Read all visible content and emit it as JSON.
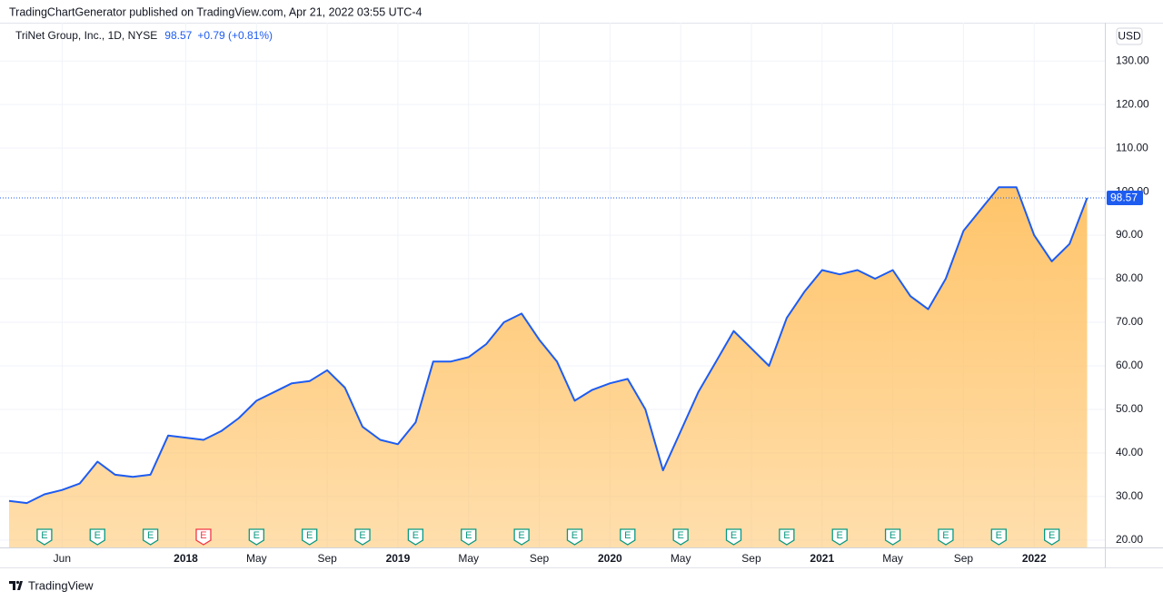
{
  "header": "TradingChartGenerator published on TradingView.com, Apr 21, 2022 03:55 UTC-4",
  "footer": "TradingView",
  "chart_data": {
    "type": "area",
    "title": "TriNet Group, Inc., 1D, NYSE",
    "last_price": 98.57,
    "last_price_label": "98.57",
    "change": "+0.79 (+0.81%)",
    "currency": "USD",
    "grid": true,
    "series": [
      {
        "name": "TriNet Group, Inc.",
        "color": "#1e5cf0",
        "fill": "#ffc46a",
        "x": [
          "2017-03",
          "2017-04",
          "2017-05",
          "2017-06",
          "2017-07",
          "2017-08",
          "2017-09",
          "2017-10",
          "2017-11",
          "2017-12",
          "2018-01",
          "2018-02",
          "2018-03",
          "2018-04",
          "2018-05",
          "2018-06",
          "2018-07",
          "2018-08",
          "2018-09",
          "2018-10",
          "2018-11",
          "2018-12",
          "2019-01",
          "2019-02",
          "2019-03",
          "2019-04",
          "2019-05",
          "2019-06",
          "2019-07",
          "2019-08",
          "2019-09",
          "2019-10",
          "2019-11",
          "2019-12",
          "2020-01",
          "2020-02",
          "2020-03",
          "2020-04",
          "2020-05",
          "2020-06",
          "2020-07",
          "2020-08",
          "2020-09",
          "2020-10",
          "2020-11",
          "2020-12",
          "2021-01",
          "2021-02",
          "2021-03",
          "2021-04",
          "2021-05",
          "2021-06",
          "2021-07",
          "2021-08",
          "2021-09",
          "2021-10",
          "2021-11",
          "2021-12",
          "2022-01",
          "2022-02",
          "2022-03",
          "2022-04"
        ],
        "values": [
          29,
          28.5,
          30.5,
          31.5,
          33,
          38,
          35,
          34.5,
          35,
          44,
          43.5,
          43,
          45,
          48,
          52,
          54,
          56,
          56.5,
          59,
          55,
          46,
          43,
          42,
          47,
          61,
          61,
          62,
          65,
          70,
          72,
          66,
          61,
          52,
          54.5,
          56,
          57,
          50,
          36,
          45,
          54,
          61,
          68,
          64,
          60,
          71,
          77,
          82,
          81,
          82,
          80,
          82,
          76,
          73,
          80,
          91,
          96,
          101,
          101,
          90,
          84,
          88,
          98.57
        ]
      }
    ],
    "earnings_label": "E",
    "earnings": [
      {
        "x": "2017-05",
        "color": "#089981"
      },
      {
        "x": "2017-08",
        "color": "#089981"
      },
      {
        "x": "2017-11",
        "color": "#089981"
      },
      {
        "x": "2018-02",
        "color": "#f23645"
      },
      {
        "x": "2018-05",
        "color": "#089981"
      },
      {
        "x": "2018-08",
        "color": "#089981"
      },
      {
        "x": "2018-11",
        "color": "#089981"
      },
      {
        "x": "2019-02",
        "color": "#089981"
      },
      {
        "x": "2019-05",
        "color": "#089981"
      },
      {
        "x": "2019-08",
        "color": "#089981"
      },
      {
        "x": "2019-11",
        "color": "#089981"
      },
      {
        "x": "2020-02",
        "color": "#089981"
      },
      {
        "x": "2020-05",
        "color": "#089981"
      },
      {
        "x": "2020-08",
        "color": "#089981"
      },
      {
        "x": "2020-11",
        "color": "#089981"
      },
      {
        "x": "2021-02",
        "color": "#089981"
      },
      {
        "x": "2021-05",
        "color": "#089981"
      },
      {
        "x": "2021-08",
        "color": "#089981"
      },
      {
        "x": "2021-11",
        "color": "#089981"
      },
      {
        "x": "2022-02",
        "color": "#089981"
      }
    ],
    "xlim": [
      "2017-03",
      "2022-05"
    ],
    "xticks": [
      {
        "value": "2017-06",
        "label": "Jun"
      },
      {
        "value": "2018-01",
        "label": "2018"
      },
      {
        "value": "2018-05",
        "label": "May"
      },
      {
        "value": "2018-09",
        "label": "Sep"
      },
      {
        "value": "2019-01",
        "label": "2019"
      },
      {
        "value": "2019-05",
        "label": "May"
      },
      {
        "value": "2019-09",
        "label": "Sep"
      },
      {
        "value": "2020-01",
        "label": "2020"
      },
      {
        "value": "2020-05",
        "label": "May"
      },
      {
        "value": "2020-09",
        "label": "Sep"
      },
      {
        "value": "2021-01",
        "label": "2021"
      },
      {
        "value": "2021-05",
        "label": "May"
      },
      {
        "value": "2021-09",
        "label": "Sep"
      },
      {
        "value": "2022-01",
        "label": "2022"
      }
    ],
    "ylim": [
      18.3,
      138.8
    ],
    "yticks": [
      {
        "value": 20,
        "label": "20.00"
      },
      {
        "value": 30,
        "label": "30.00"
      },
      {
        "value": 40,
        "label": "40.00"
      },
      {
        "value": 50,
        "label": "50.00"
      },
      {
        "value": 60,
        "label": "60.00"
      },
      {
        "value": 70,
        "label": "70.00"
      },
      {
        "value": 80,
        "label": "80.00"
      },
      {
        "value": 90,
        "label": "90.00"
      },
      {
        "value": 100,
        "label": "100.00"
      },
      {
        "value": 110,
        "label": "110.00"
      },
      {
        "value": 120,
        "label": "120.00"
      },
      {
        "value": 130,
        "label": "130.00"
      }
    ]
  }
}
